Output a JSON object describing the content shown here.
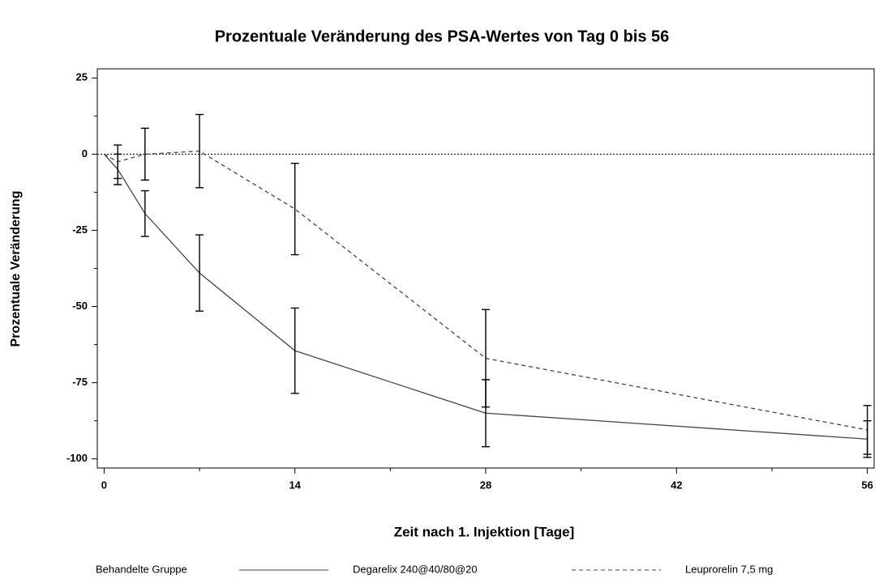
{
  "chart_data": {
    "type": "line",
    "title": "Prozentuale Veränderung des PSA-Wertes von Tag 0 bis 56",
    "xlabel": "Zeit nach 1. Injektion [Tage]",
    "ylabel": "Prozentuale Veränderung",
    "legend_title": "Behandelte Gruppe",
    "x": [
      0,
      1,
      3,
      7,
      14,
      28,
      56
    ],
    "series": [
      {
        "name": "Degarelix 240@40/80@20",
        "color": "#444444",
        "style": "solid",
        "values": [
          0,
          -5,
          -19.5,
          -39,
          -64.5,
          -85,
          -93.5
        ],
        "errors": [
          null,
          5,
          7.5,
          12.5,
          14,
          11,
          6
        ]
      },
      {
        "name": "Leuprorelin 7,5 mg",
        "color": "#444444",
        "style": "dashed",
        "values": [
          0,
          -2.5,
          0,
          1,
          -18,
          -67,
          -90.5
        ],
        "errors": [
          null,
          5.5,
          8.5,
          12,
          15,
          16,
          8
        ]
      }
    ],
    "xlim": [
      -0.5,
      56.5
    ],
    "xticks": [
      0,
      14,
      28,
      42,
      56
    ],
    "xminor": [
      7,
      21,
      35,
      49
    ],
    "ylim": [
      -103,
      28
    ],
    "yticks": [
      -100,
      -75,
      -50,
      -25,
      0,
      25
    ],
    "yminor": [
      -87.5,
      -62.5,
      -37.5,
      -12.5,
      12.5
    ],
    "hline": 0
  }
}
